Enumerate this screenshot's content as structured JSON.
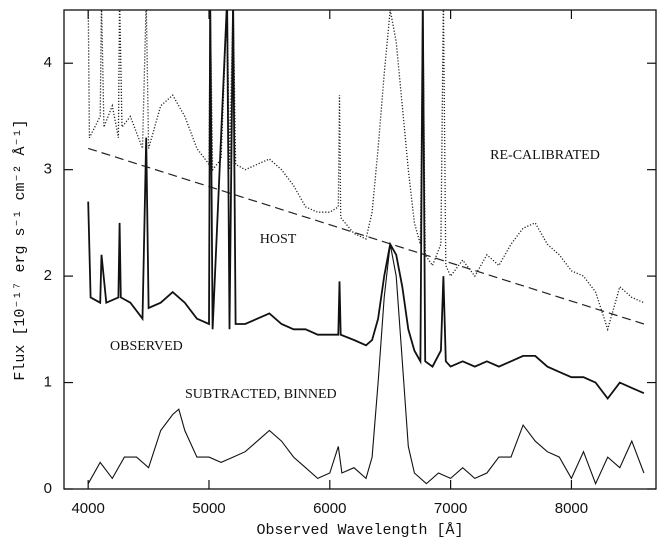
{
  "chart_data": {
    "type": "line",
    "x_label": "Observed Wavelength [Å]",
    "y_label": "Flux [10⁻¹⁷ erg s⁻¹ cm⁻² Å⁻¹]",
    "xlim": [
      3800,
      8700
    ],
    "ylim": [
      0,
      4.5
    ],
    "xticks": [
      4000,
      5000,
      6000,
      7000,
      8000
    ],
    "yticks": [
      0,
      1,
      2,
      3,
      4
    ],
    "grid": false,
    "annotations": [
      "RE-CALIBRATED",
      "HOST",
      "OBSERVED",
      "SUBTRACTED, BINNED"
    ],
    "series": [
      {
        "name": "RE-CALIBRATED",
        "color": "#222222",
        "style": "dotted",
        "width": 1.3,
        "x": [
          4000,
          4010,
          4100,
          4110,
          4130,
          4200,
          4250,
          4260,
          4280,
          4350,
          4450,
          4480,
          4500,
          4600,
          4700,
          4800,
          4900,
          5000,
          5010,
          5030,
          5100,
          5150,
          5170,
          5200,
          5220,
          5300,
          5400,
          5500,
          5600,
          5700,
          5800,
          5900,
          6000,
          6070,
          6080,
          6090,
          6200,
          6300,
          6350,
          6400,
          6450,
          6500,
          6550,
          6600,
          6650,
          6700,
          6750,
          6770,
          6790,
          6850,
          6920,
          6940,
          6960,
          7000,
          7100,
          7200,
          7300,
          7400,
          7500,
          7600,
          7700,
          7800,
          7900,
          8000,
          8100,
          8200,
          8300,
          8400,
          8500,
          8600
        ],
        "values": [
          4.6,
          3.3,
          3.5,
          4.6,
          3.4,
          3.6,
          3.3,
          4.6,
          3.4,
          3.5,
          3.2,
          4.6,
          3.2,
          3.6,
          3.7,
          3.5,
          3.2,
          3.05,
          4.6,
          3.0,
          3.1,
          4.6,
          3.0,
          4.6,
          3.05,
          3.0,
          3.05,
          3.1,
          3.0,
          2.85,
          2.65,
          2.6,
          2.6,
          2.65,
          3.7,
          2.55,
          2.4,
          2.35,
          2.6,
          3.2,
          3.9,
          4.5,
          4.2,
          3.6,
          3.0,
          2.5,
          2.3,
          4.6,
          2.2,
          2.1,
          2.3,
          4.6,
          2.1,
          2.0,
          2.15,
          2.0,
          2.2,
          2.1,
          2.3,
          2.45,
          2.5,
          2.3,
          2.2,
          2.05,
          2.0,
          1.85,
          1.5,
          1.9,
          1.8,
          1.75
        ]
      },
      {
        "name": "HOST",
        "color": "#222222",
        "style": "dashed",
        "width": 1.2,
        "x": [
          4000,
          8600
        ],
        "values": [
          3.2,
          1.55
        ]
      },
      {
        "name": "OBSERVED",
        "color": "#111111",
        "style": "solid",
        "width": 1.8,
        "x": [
          4000,
          4020,
          4100,
          4110,
          4150,
          4250,
          4260,
          4270,
          4350,
          4450,
          4480,
          4500,
          4600,
          4700,
          4800,
          4900,
          5000,
          5010,
          5030,
          5150,
          5170,
          5200,
          5220,
          5300,
          5400,
          5500,
          5600,
          5700,
          5800,
          5900,
          6000,
          6070,
          6080,
          6090,
          6200,
          6300,
          6350,
          6400,
          6450,
          6500,
          6550,
          6600,
          6650,
          6700,
          6750,
          6770,
          6790,
          6850,
          6920,
          6940,
          6960,
          7000,
          7100,
          7200,
          7300,
          7400,
          7500,
          7600,
          7700,
          7800,
          7900,
          8000,
          8100,
          8200,
          8300,
          8400,
          8500,
          8600
        ],
        "values": [
          2.7,
          1.8,
          1.75,
          2.2,
          1.75,
          1.8,
          2.5,
          1.8,
          1.75,
          1.6,
          3.3,
          1.7,
          1.75,
          1.85,
          1.75,
          1.6,
          1.55,
          4.6,
          1.5,
          4.6,
          1.5,
          4.6,
          1.55,
          1.55,
          1.6,
          1.65,
          1.55,
          1.5,
          1.5,
          1.45,
          1.45,
          1.45,
          1.95,
          1.45,
          1.4,
          1.35,
          1.4,
          1.6,
          2.0,
          2.3,
          2.2,
          1.9,
          1.5,
          1.3,
          1.2,
          4.6,
          1.2,
          1.15,
          1.3,
          2.0,
          1.2,
          1.15,
          1.2,
          1.15,
          1.2,
          1.15,
          1.2,
          1.25,
          1.25,
          1.15,
          1.1,
          1.05,
          1.05,
          1.0,
          0.85,
          1.0,
          0.95,
          0.9
        ]
      },
      {
        "name": "SUBTRACTED, BINNED",
        "color": "#111111",
        "style": "solid",
        "width": 1.1,
        "x": [
          4000,
          4100,
          4200,
          4300,
          4400,
          4500,
          4600,
          4700,
          4750,
          4800,
          4900,
          5000,
          5100,
          5200,
          5300,
          5400,
          5500,
          5600,
          5700,
          5800,
          5900,
          6000,
          6070,
          6100,
          6200,
          6300,
          6350,
          6400,
          6450,
          6500,
          6550,
          6600,
          6650,
          6700,
          6800,
          6900,
          7000,
          7100,
          7200,
          7300,
          7400,
          7500,
          7600,
          7700,
          7800,
          7900,
          8000,
          8100,
          8200,
          8300,
          8400,
          8500,
          8600
        ],
        "values": [
          0.05,
          0.25,
          0.1,
          0.3,
          0.3,
          0.2,
          0.55,
          0.7,
          0.75,
          0.55,
          0.3,
          0.3,
          0.25,
          0.3,
          0.35,
          0.45,
          0.55,
          0.45,
          0.3,
          0.2,
          0.1,
          0.15,
          0.4,
          0.15,
          0.2,
          0.1,
          0.3,
          1.0,
          1.8,
          2.3,
          2.0,
          1.2,
          0.4,
          0.15,
          0.05,
          0.15,
          0.1,
          0.2,
          0.1,
          0.15,
          0.3,
          0.3,
          0.6,
          0.45,
          0.35,
          0.3,
          0.1,
          0.35,
          0.05,
          0.3,
          0.2,
          0.45,
          0.15
        ]
      }
    ]
  }
}
